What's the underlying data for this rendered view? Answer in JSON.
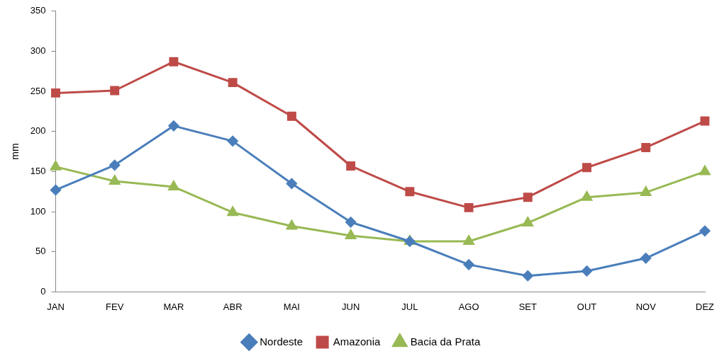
{
  "chart_data": {
    "type": "line",
    "ylabel": "mm",
    "categories": [
      "JAN",
      "FEV",
      "MAR",
      "ABR",
      "MAI",
      "JUN",
      "JUL",
      "AGO",
      "SET",
      "OUT",
      "NOV",
      "DEZ"
    ],
    "series": [
      {
        "name": "Nordeste",
        "color": "#4a7ebb",
        "marker": "diamond",
        "values": [
          127,
          158,
          207,
          188,
          135,
          87,
          63,
          34,
          20,
          26,
          42,
          76
        ]
      },
      {
        "name": "Amazonia",
        "color": "#be4b48",
        "marker": "square",
        "values": [
          248,
          251,
          287,
          261,
          219,
          157,
          125,
          105,
          118,
          155,
          180,
          213
        ]
      },
      {
        "name": "Bacia da Prata",
        "color": "#98b954",
        "marker": "triangle",
        "values": [
          156,
          138,
          131,
          99,
          82,
          70,
          63,
          63,
          86,
          118,
          124,
          150
        ]
      }
    ],
    "ylim": [
      0,
      350
    ],
    "yticks": [
      0,
      50,
      100,
      150,
      200,
      250,
      300,
      350
    ],
    "grid": false,
    "legend": "bottom",
    "line_style": "solid"
  }
}
